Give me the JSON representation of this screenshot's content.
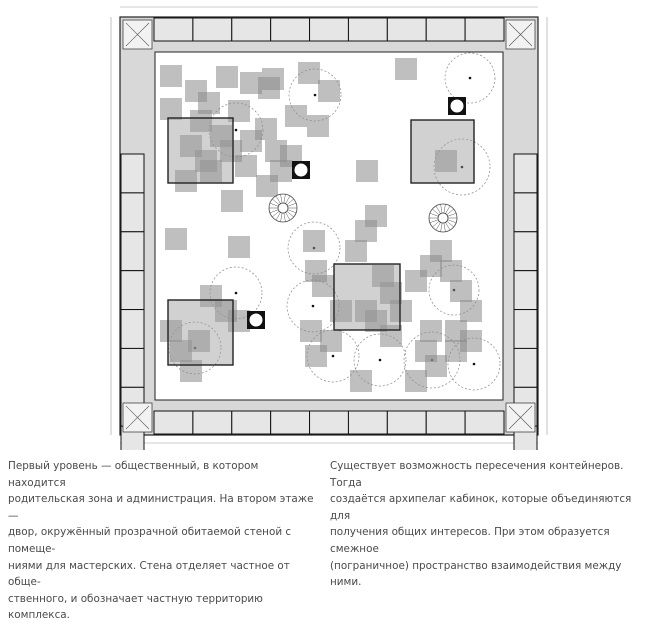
{
  "plan": {
    "colors": {
      "container": "#8a8a8a",
      "frame": "#222222",
      "room_fill": "#e6e6e6",
      "corridor": "#d8d8d8"
    },
    "icons": [
      "spiral-staircase-icon",
      "elevator-icon",
      "stair-core-icon"
    ]
  },
  "captions": {
    "left": "Первый уровень — общественный, в котором находится\nродительская зона и администрация. На втором этаже —\nдвор, окружённый прозрачной обитаемой стеной с помеще-\nниями для мастерских. Стена отделяет частное от обще-\nственного, и обозначает частную территорию комплекса.",
    "right": "Существует возможность пересечения контейнеров.  Тогда\nсоздаётся архипелаг кабинок, которые объединяются для\nполучения общих интересов. При этом образуется смежное\n(пограничное) пространство взаимодействия между ними."
  }
}
